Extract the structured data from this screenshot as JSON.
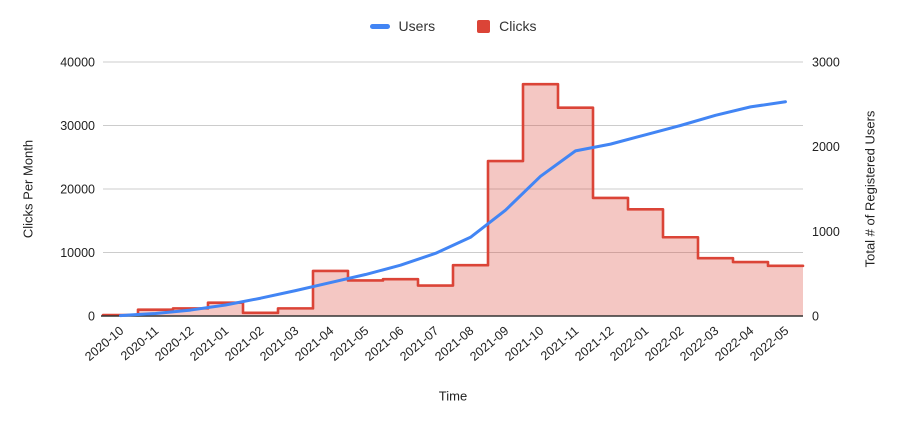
{
  "legend": {
    "users_label": "Users",
    "clicks_label": "Clicks"
  },
  "colors": {
    "users_line": "#4285f4",
    "clicks_line": "#db4437",
    "clicks_fill": "rgba(219,68,55,0.3)",
    "gridline": "#cccccc",
    "axis_line": "#333333",
    "tick_text": "#222222"
  },
  "chart_data": {
    "type": "combo",
    "subtypes": {
      "Users": "line",
      "Clicks": "steppedArea"
    },
    "title": "",
    "xlabel": "Time",
    "legend_position": "top",
    "grid": true,
    "categories": [
      "2020-10",
      "2020-11",
      "2020-12",
      "2021-01",
      "2021-02",
      "2021-03",
      "2021-04",
      "2021-05",
      "2021-06",
      "2021-07",
      "2021-08",
      "2021-09",
      "2021-10",
      "2021-11",
      "2021-12",
      "2022-01",
      "2022-02",
      "2022-03",
      "2022-04",
      "2022-05"
    ],
    "series": [
      {
        "name": "Users",
        "type": "line",
        "axis": "right",
        "color": "#4285f4",
        "values": [
          5,
          30,
          70,
          130,
          210,
          300,
          395,
          490,
          600,
          740,
          930,
          1250,
          1650,
          1950,
          2030,
          2140,
          2250,
          2370,
          2470,
          2530
        ]
      },
      {
        "name": "Clicks",
        "type": "steppedArea",
        "axis": "left",
        "color": "#db4437",
        "fill": "rgba(219,68,55,0.3)",
        "values": [
          150,
          1000,
          1200,
          2100,
          500,
          1200,
          7100,
          5600,
          5800,
          4800,
          8000,
          24400,
          36500,
          32800,
          18600,
          16800,
          12400,
          9100,
          8500,
          7900
        ]
      }
    ],
    "left_axis": {
      "title": "Clicks Per Month",
      "range": [
        0,
        40000
      ],
      "ticks": [
        0,
        10000,
        20000,
        30000,
        40000
      ]
    },
    "right_axis": {
      "title": "Total # of Registered Users",
      "range": [
        0,
        3000
      ],
      "ticks": [
        0,
        1000,
        2000,
        3000
      ]
    },
    "x_axis": {
      "title": "Time"
    }
  }
}
